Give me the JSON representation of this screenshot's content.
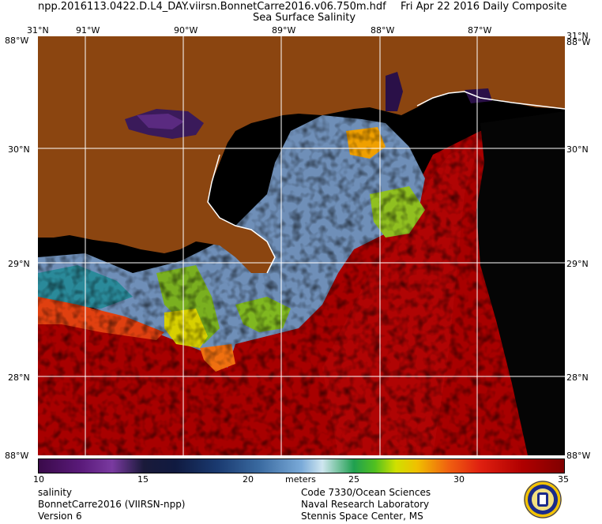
{
  "header": {
    "filename": "npp.2016113.0422.D.L4_DAY.viirsn.BonnetCarre2016.v06.750m.hdf",
    "date": "Fri Apr 22 2016 Daily Composite",
    "product": "Sea Surface Salinity"
  },
  "map": {
    "top_labels": [
      "31°N",
      "91°W",
      "90°W",
      "89°W",
      "88°W",
      "87°W",
      "31°N"
    ],
    "bottom_labels": [
      "88°W",
      "88°W"
    ],
    "top_right_code": "88°W",
    "left_lat_labels": [
      "30°N",
      "29°N",
      "28°N"
    ],
    "right_lat_labels": [
      "30°N",
      "29°N",
      "28°N"
    ],
    "corner_top_left": "88°W",
    "corner_top_right": "88°W"
  },
  "colorbar": {
    "ticks": [
      "10",
      "15",
      "20",
      "25",
      "30",
      "35"
    ],
    "units": "meters"
  },
  "footer": {
    "left": [
      "salinity",
      "BonnetCarre2016 (VIIRSN-npp)",
      "Version 6"
    ],
    "right": [
      "Code 7330/Ocean Sciences",
      "Naval Research Laboratory",
      "Stennis Space Center, MS"
    ]
  },
  "colors": {
    "land": "#8b4510",
    "water_high": "#b00000",
    "grid": "#ffffff"
  }
}
